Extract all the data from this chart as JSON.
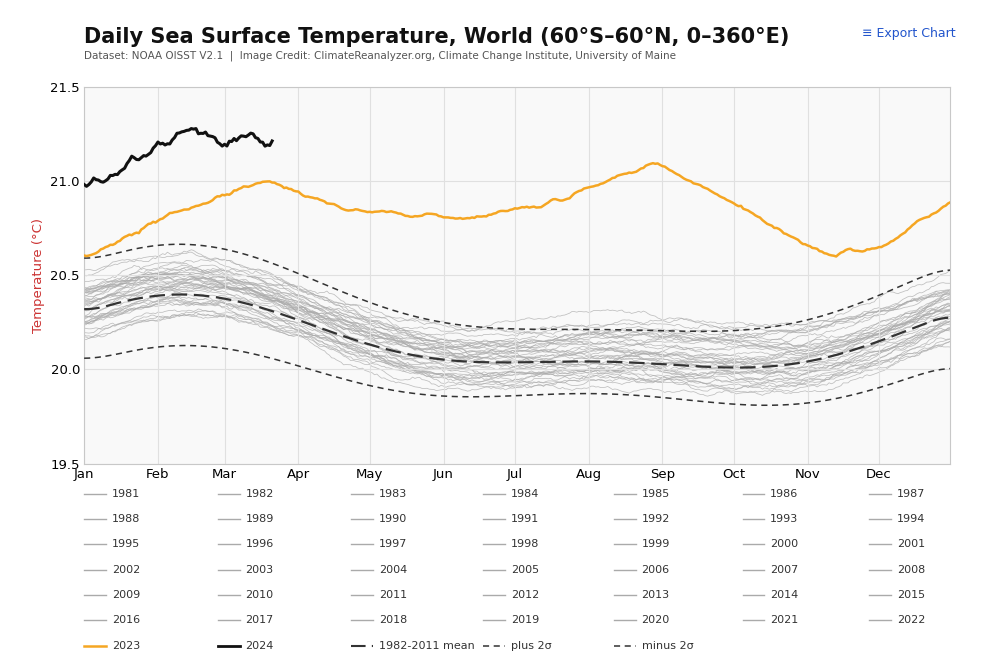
{
  "title": "Daily Sea Surface Temperature, World (60°S–60°N, 0–360°E)",
  "subtitle": "Dataset: NOAA OISST V2.1  |  Image Credit: ClimateReanalyzer.org, Climate Change Institute, University of Maine",
  "export_text": "≡ Export Chart",
  "ylabel": "Temperature (°C)",
  "ylim": [
    19.5,
    21.5
  ],
  "yticks": [
    19.5,
    20.0,
    20.5,
    21.0,
    21.5
  ],
  "background_color": "#ffffff",
  "plot_bg_color": "#f9f9f9",
  "grid_color": "#e0e0e0",
  "months": [
    "Jan",
    "Feb",
    "Mar",
    "Apr",
    "May",
    "Jun",
    "Jul",
    "Aug",
    "Sep",
    "Oct",
    "Nov",
    "Dec"
  ],
  "month_days": [
    0,
    31,
    59,
    90,
    120,
    151,
    181,
    212,
    243,
    273,
    304,
    334
  ],
  "orange_color": "#f5a623",
  "black_color": "#111111",
  "gray_color": "#aaaaaa",
  "dashed_color": "#333333",
  "title_fontsize": 15,
  "subtitle_fontsize": 7.5,
  "axis_fontsize": 9.5,
  "legend_fontsize": 8,
  "ylabel_color": "#cc3333",
  "export_color": "#2255cc",
  "years_gray": [
    1981,
    1982,
    1983,
    1984,
    1985,
    1986,
    1987,
    1988,
    1989,
    1990,
    1991,
    1992,
    1993,
    1994,
    1995,
    1996,
    1997,
    1998,
    1999,
    2000,
    2001,
    2002,
    2003,
    2004,
    2005,
    2006,
    2007,
    2008,
    2009,
    2010,
    2011,
    2012,
    2013,
    2014,
    2015,
    2016,
    2017,
    2018,
    2019,
    2020,
    2021,
    2022
  ]
}
